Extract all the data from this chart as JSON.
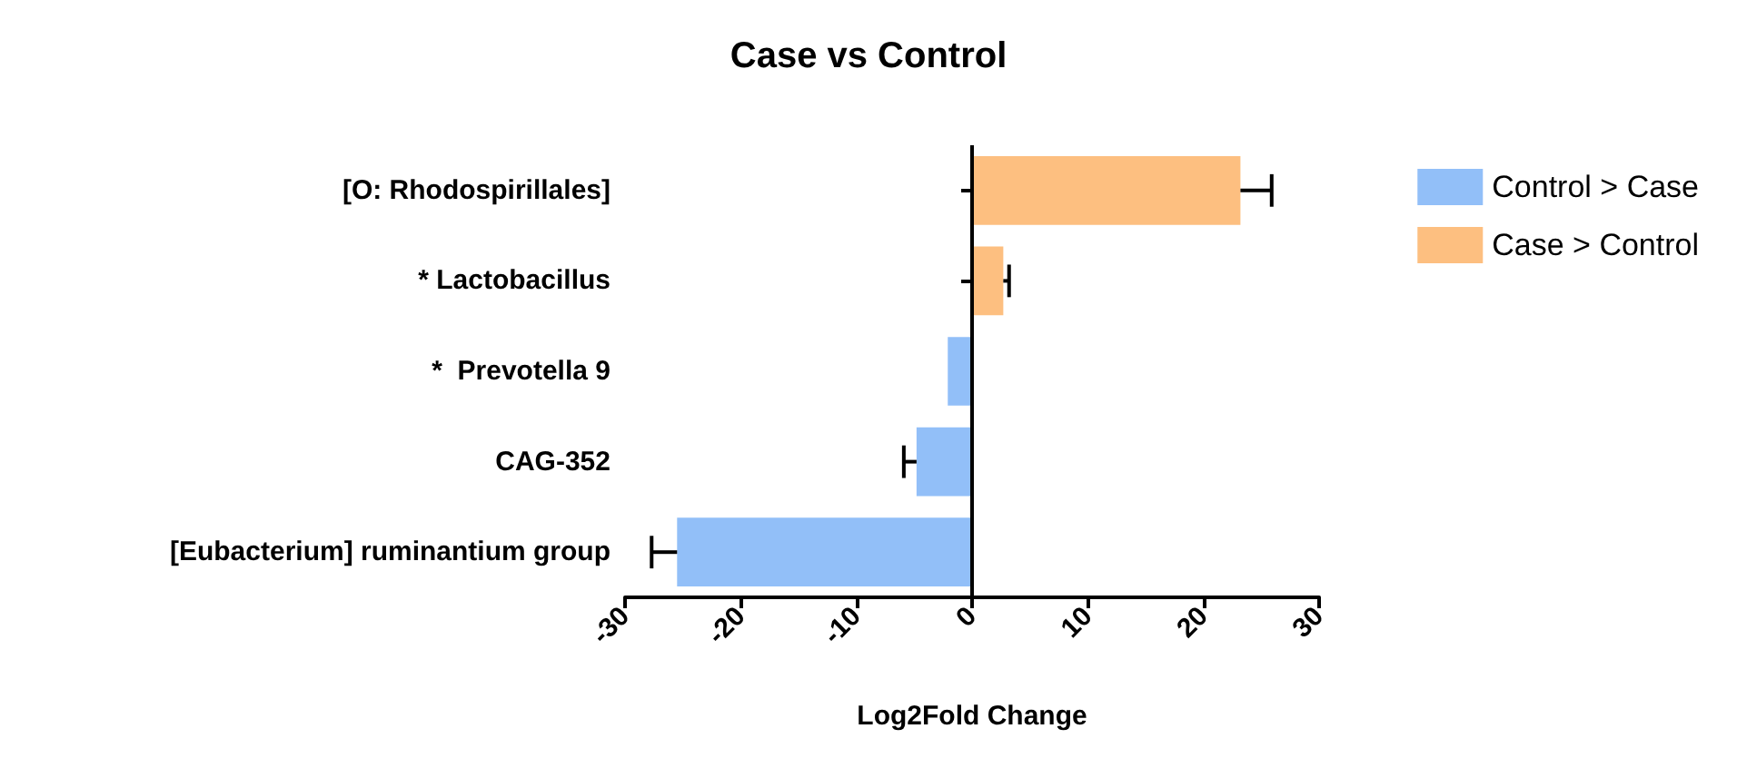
{
  "chart_data": {
    "type": "bar",
    "orientation": "horizontal",
    "stacked": true,
    "title": "Case vs Control",
    "xlabel": "Log2Fold Change",
    "categories": [
      "[O: Rhodospirillales]",
      "* Lactobacillus",
      "*  Prevotella 9",
      "CAG-352",
      "[Eubacterium] ruminantium group"
    ],
    "series": [
      {
        "name": "Control > Case",
        "color": "#92bff8",
        "values": [
          null,
          null,
          -2.1,
          -4.8,
          -25.5
        ],
        "errors": [
          null,
          null,
          null,
          [
            -5.9,
            -4.8
          ],
          [
            -27.7,
            -25.5
          ]
        ]
      },
      {
        "name": "Case > Control",
        "color": "#fdbf80",
        "values": [
          23.2,
          2.7,
          null,
          null,
          null
        ],
        "errors": [
          [
            23.2,
            25.9
          ],
          [
            2.7,
            3.2
          ],
          null,
          null,
          null
        ]
      }
    ],
    "xlim": [
      -30,
      30
    ],
    "xticks": [
      -30,
      -20,
      -10,
      0,
      10,
      20,
      30
    ],
    "ref_lines": [
      {
        "axis": "x",
        "value": 0
      }
    ],
    "grid": false,
    "legend": "top right"
  }
}
